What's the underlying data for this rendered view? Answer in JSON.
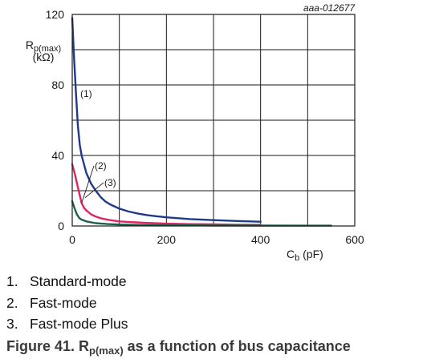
{
  "figure_id": "aaa-012677",
  "chart_data": {
    "type": "line",
    "title": "",
    "xlabel": "Cb (pF)",
    "xlabel_main": "C",
    "xlabel_sub": "b",
    "xlabel_unit": " (pF)",
    "ylabel_main": "R",
    "ylabel_sub": "p(max)",
    "ylabel_unit": "(kΩ)",
    "xlim": [
      0,
      600
    ],
    "ylim": [
      0,
      120
    ],
    "x_ticks": [
      0,
      200,
      400,
      600
    ],
    "y_ticks": [
      0,
      40,
      80,
      120
    ],
    "x_tick_labels": [
      "0",
      "200",
      "400",
      "600"
    ],
    "y_tick_labels": [
      "0",
      "40",
      "80",
      "120"
    ],
    "x_grid_step": 100,
    "y_grid_step": 20,
    "grid": true,
    "series": [
      {
        "name": "(1)",
        "color": "#1f3a8a",
        "points": [
          [
            0,
            118
          ],
          [
            4,
            95
          ],
          [
            8,
            75
          ],
          [
            12,
            57
          ],
          [
            16,
            46
          ],
          [
            20,
            40
          ],
          [
            30,
            30
          ],
          [
            40,
            24
          ],
          [
            50,
            20
          ],
          [
            60,
            16.5
          ],
          [
            70,
            14
          ],
          [
            80,
            12.3
          ],
          [
            100,
            9.8
          ],
          [
            120,
            8.2
          ],
          [
            140,
            7
          ],
          [
            160,
            6.1
          ],
          [
            180,
            5.5
          ],
          [
            200,
            4.9
          ],
          [
            250,
            3.9
          ],
          [
            300,
            3.3
          ],
          [
            350,
            2.8
          ],
          [
            400,
            2.4
          ]
        ]
      },
      {
        "name": "(2)",
        "color": "#e0245e",
        "points": [
          [
            0,
            35
          ],
          [
            6,
            29
          ],
          [
            12,
            22
          ],
          [
            20,
            13
          ],
          [
            25,
            10.3
          ],
          [
            30,
            8.8
          ],
          [
            40,
            6.6
          ],
          [
            50,
            5.3
          ],
          [
            60,
            4.4
          ],
          [
            80,
            3.3
          ],
          [
            100,
            2.6
          ],
          [
            150,
            1.8
          ],
          [
            200,
            1.3
          ],
          [
            250,
            1.05
          ],
          [
            300,
            0.9
          ],
          [
            350,
            0.75
          ],
          [
            400,
            0.65
          ]
        ]
      },
      {
        "name": "(3)",
        "color": "#1f5f4a",
        "points": [
          [
            0,
            14
          ],
          [
            5,
            10
          ],
          [
            10,
            6.5
          ],
          [
            15,
            4.5
          ],
          [
            20,
            3.6
          ],
          [
            30,
            2.6
          ],
          [
            50,
            1.6
          ],
          [
            75,
            1.1
          ],
          [
            100,
            0.8
          ],
          [
            150,
            0.55
          ],
          [
            200,
            0.4
          ],
          [
            300,
            0.28
          ],
          [
            400,
            0.22
          ],
          [
            500,
            0.18
          ],
          [
            550,
            0.16
          ]
        ]
      }
    ]
  },
  "legend": [
    {
      "number": "1.",
      "label": "Standard-mode"
    },
    {
      "number": "2.",
      "label": "Fast-mode"
    },
    {
      "number": "3.",
      "label": "Fast-mode Plus"
    }
  ],
  "caption": {
    "prefix": "Figure 41.  R",
    "sub": "p(max)",
    "suffix": " as a function of bus capacitance"
  }
}
